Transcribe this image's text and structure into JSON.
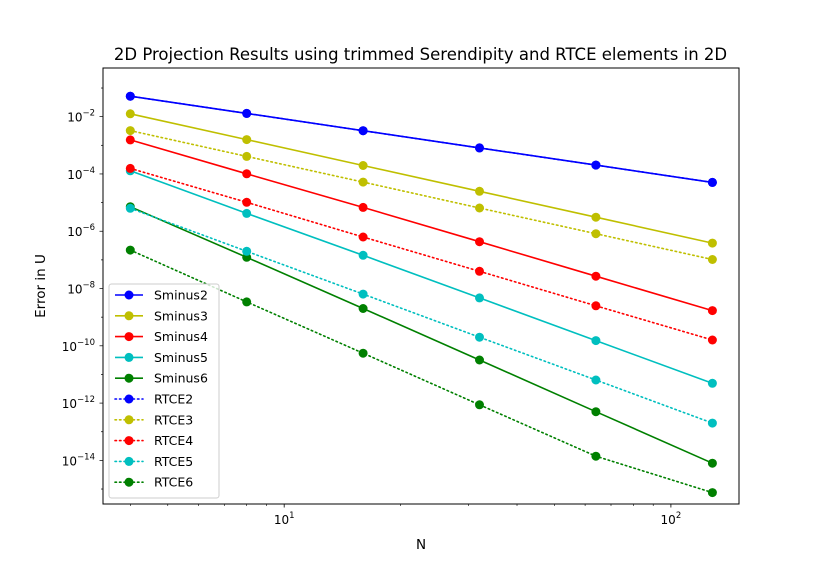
{
  "chart_data": {
    "type": "line",
    "title": "2D Projection Results using trimmed Serendipity and RTCE elements in 2D",
    "xlabel": "N",
    "ylabel": "Error in U",
    "xscale": "log",
    "yscale": "log",
    "xlim": [
      3.4,
      150
    ],
    "ylim": [
      3e-16,
      0.5
    ],
    "x": [
      4,
      8,
      16,
      32,
      64,
      128
    ],
    "xticks": [
      {
        "value": 10,
        "base": "10",
        "exp": "1"
      },
      {
        "value": 100,
        "base": "10",
        "exp": "2"
      }
    ],
    "yticks": [
      {
        "value": 0.01,
        "base": "10",
        "exp": "−2"
      },
      {
        "value": 0.0001,
        "base": "10",
        "exp": "−4"
      },
      {
        "value": 1e-06,
        "base": "10",
        "exp": "−6"
      },
      {
        "value": 1e-08,
        "base": "10",
        "exp": "−8"
      },
      {
        "value": 1e-10,
        "base": "10",
        "exp": "−10"
      },
      {
        "value": 1e-12,
        "base": "10",
        "exp": "−12"
      },
      {
        "value": 1e-14,
        "base": "10",
        "exp": "−14"
      }
    ],
    "grid": false,
    "legend": "lower-left",
    "series": [
      {
        "name": "Sminus2",
        "color": "#0000ff",
        "style": "solid",
        "values": [
          0.0518,
          0.013,
          0.00324,
          0.000811,
          0.000203,
          5.07e-05
        ]
      },
      {
        "name": "Sminus3",
        "color": "#bfbf00",
        "style": "solid",
        "values": [
          0.0126,
          0.00158,
          0.000198,
          2.47e-05,
          3.09e-06,
          3.86e-07
        ]
      },
      {
        "name": "Sminus4",
        "color": "#ff0000",
        "style": "solid",
        "values": [
          0.00155,
          0.000101,
          6.8e-06,
          4.3e-07,
          2.7e-08,
          1.7e-09
        ]
      },
      {
        "name": "Sminus5",
        "color": "#00bfbf",
        "style": "solid",
        "values": [
          0.000129,
          4.2e-06,
          1.45e-07,
          4.7e-09,
          1.52e-10,
          4.9e-12
        ]
      },
      {
        "name": "Sminus6",
        "color": "#008000",
        "style": "solid",
        "values": [
          7.2e-06,
          1.23e-07,
          2e-09,
          3.2e-11,
          5e-13,
          8e-15
        ]
      },
      {
        "name": "RTCE2",
        "color": "#0000ff",
        "style": "dotted",
        "values": [
          0.0518,
          0.013,
          0.00324,
          0.000811,
          0.000203,
          5.07e-05
        ]
      },
      {
        "name": "RTCE3",
        "color": "#bfbf00",
        "style": "dotted",
        "values": [
          0.00325,
          0.00041,
          5.2e-05,
          6.5e-06,
          8.2e-07,
          1.03e-07
        ]
      },
      {
        "name": "RTCE4",
        "color": "#ff0000",
        "style": "dotted",
        "values": [
          0.000156,
          1.02e-05,
          6.3e-07,
          4e-08,
          2.5e-09,
          1.6e-10
        ]
      },
      {
        "name": "RTCE5",
        "color": "#00bfbf",
        "style": "dotted",
        "values": [
          6.3e-06,
          2e-07,
          6.4e-09,
          2e-10,
          6.4e-12,
          2e-13
        ]
      },
      {
        "name": "RTCE6",
        "color": "#008000",
        "style": "dotted",
        "values": [
          2.2e-07,
          3.4e-09,
          5.5e-11,
          8.7e-13,
          1.4e-14,
          7.5e-16
        ]
      }
    ]
  }
}
